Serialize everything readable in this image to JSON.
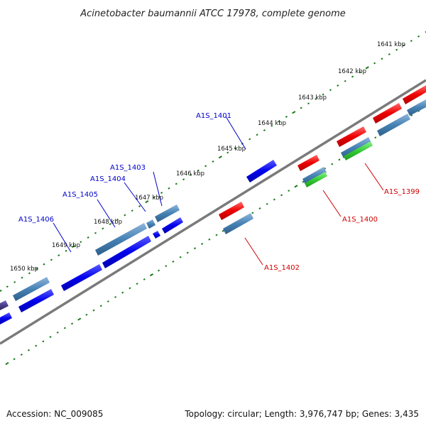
{
  "title": "Acinetobacter baumannii ATCC 17978, complete genome",
  "footer": {
    "accession": "Accession: NC_009085",
    "summary": "Topology: circular; Length: 3,976,747 bp; Genes: 3,435"
  },
  "scale_labels": [
    "1641 kbp",
    "1642 kbp",
    "1643 kbp",
    "1644 kbp",
    "1645 kbp",
    "1646 kbp",
    "1647 kbp",
    "1648 kbp",
    "1649 kbp",
    "1650 kbp"
  ],
  "gene_labels": [
    {
      "name": "A1S_1399",
      "color": "#d00000"
    },
    {
      "name": "A1S_1400",
      "color": "#d00000"
    },
    {
      "name": "A1S_1401",
      "color": "#0000cc"
    },
    {
      "name": "A1S_1402",
      "color": "#d00000"
    },
    {
      "name": "A1S_1403",
      "color": "#0000cc"
    },
    {
      "name": "A1S_1404",
      "color": "#0000cc"
    },
    {
      "name": "A1S_1405",
      "color": "#0000cc"
    },
    {
      "name": "A1S_1406",
      "color": "#0000cc"
    }
  ],
  "colors": {
    "forward_cds": "#0000ee",
    "reverse_cds": "#ee0000",
    "gene": "#4682b4",
    "trna": "#33cc33",
    "other": "#483d8b",
    "backbone": "#777777",
    "scale_ticks": "#1a7a1a"
  }
}
